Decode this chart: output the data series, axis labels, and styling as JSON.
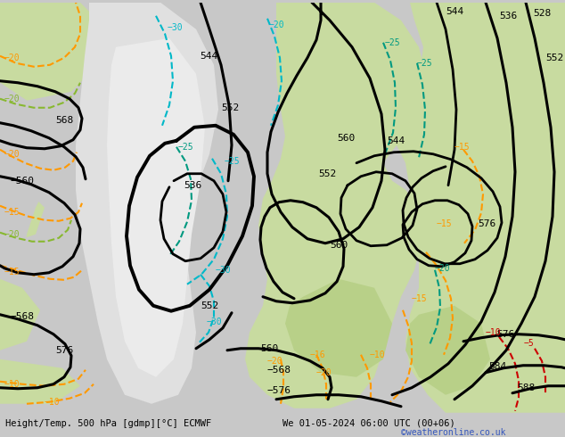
{
  "title_left": "Height/Temp. 500 hPa [gdmp][°C] ECMWF",
  "title_right": "We 01-05-2024 06:00 UTC (00+06)",
  "credit": "©weatheronline.co.uk",
  "figsize": [
    6.34,
    4.9
  ],
  "dpi": 100,
  "bg_gray": "#c8c8c8",
  "bg_light_gray": "#d8d8d8",
  "bg_white": "#e8e8e8",
  "land_green": "#c8dba0",
  "land_green2": "#b8d088",
  "orange": "#ff9900",
  "red": "#cc0000",
  "cyan": "#00b8c8",
  "teal": "#009980",
  "lime": "#88b830"
}
